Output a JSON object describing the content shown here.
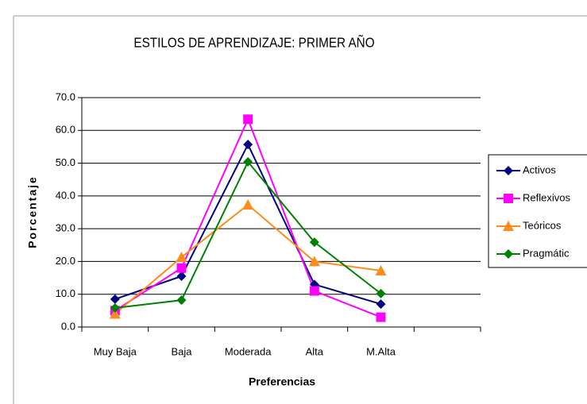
{
  "chart_data": {
    "type": "line",
    "title": "ESTILOS DE APRENDIZAJE:  PRIMER AÑO",
    "x_label": "Preferencias",
    "y_label": "Porcentaje",
    "categories": [
      "Muy Baja",
      "Baja",
      "Moderada",
      "Alta",
      "M.Alta",
      null
    ],
    "series": [
      {
        "name": "Activos",
        "color": "#000080",
        "marker": "diamond",
        "values": [
          8.5,
          15.5,
          55.7,
          13,
          7,
          null
        ]
      },
      {
        "name": "Reflexivos",
        "color": "#ff00ff",
        "marker": "square",
        "values": [
          5,
          18,
          63.4,
          11,
          3,
          null
        ]
      },
      {
        "name": "Teóricos",
        "color": "#ff8c1a",
        "marker": "triangle",
        "values": [
          4,
          21.3,
          37.3,
          20,
          17.2,
          null
        ]
      },
      {
        "name": "Pragmátic",
        "color": "#008000",
        "marker": "diamond",
        "values": [
          5.8,
          8.2,
          50.4,
          25.9,
          10.2,
          null
        ]
      }
    ],
    "ylim": [
      0,
      70
    ],
    "yticks": [
      {
        "value": 0,
        "label": "0.0"
      },
      {
        "value": 10,
        "label": "10.0"
      },
      {
        "value": 20,
        "label": "20.0"
      },
      {
        "value": 30,
        "label": "30.0"
      },
      {
        "value": 40,
        "label": "40.0"
      },
      {
        "value": 50,
        "label": "50.0"
      },
      {
        "value": 60,
        "label": "60.0"
      },
      {
        "value": 70,
        "label": "70.0"
      }
    ],
    "grid": true,
    "legend": "right"
  }
}
